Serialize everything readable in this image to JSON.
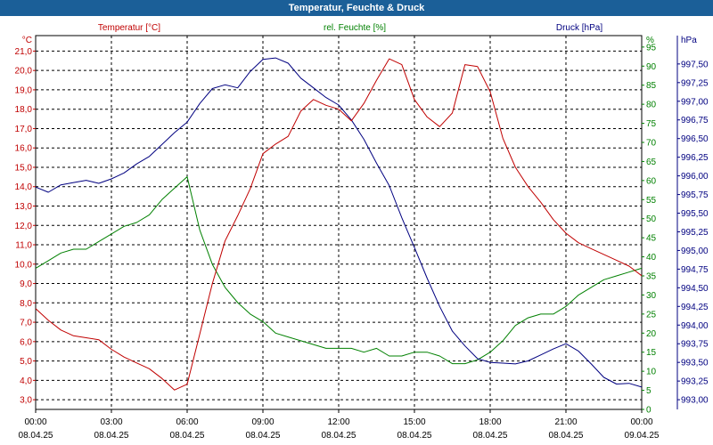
{
  "chart_data": {
    "type": "line",
    "title": "Temperatur, Feuchte & Druck",
    "x_ticks": [
      {
        "time": "00:00",
        "date": "08.04.25"
      },
      {
        "time": "03:00",
        "date": "08.04.25"
      },
      {
        "time": "06:00",
        "date": "08.04.25"
      },
      {
        "time": "09:00",
        "date": "08.04.25"
      },
      {
        "time": "12:00",
        "date": "08.04.25"
      },
      {
        "time": "15:00",
        "date": "08.04.25"
      },
      {
        "time": "18:00",
        "date": "08.04.25"
      },
      {
        "time": "21:00",
        "date": "08.04.25"
      },
      {
        "time": "00:00",
        "date": "09.04.25"
      }
    ],
    "axes": {
      "temperature": {
        "label": "Temperatur [°C]",
        "unit": "°C",
        "color": "#c00000",
        "range": [
          2.5,
          21.8
        ],
        "ticks": [
          "3,0",
          "4,0",
          "5,0",
          "6,0",
          "7,0",
          "8,0",
          "9,0",
          "10,0",
          "11,0",
          "12,0",
          "13,0",
          "14,0",
          "15,0",
          "16,0",
          "17,0",
          "18,0",
          "19,0",
          "20,0",
          "21,0"
        ]
      },
      "humidity": {
        "label": "rel. Feuchte [%]",
        "unit": "%",
        "color": "#008000",
        "range": [
          0,
          98
        ],
        "ticks": [
          "0",
          "5",
          "10",
          "15",
          "20",
          "25",
          "30",
          "35",
          "40",
          "45",
          "50",
          "55",
          "60",
          "65",
          "70",
          "75",
          "80",
          "85",
          "90",
          "95"
        ]
      },
      "pressure": {
        "label": "Druck [hPa]",
        "unit": "hPa",
        "color": "#000080",
        "range": [
          992.87,
          997.88
        ],
        "ticks": [
          "993,00",
          "993,25",
          "993,50",
          "993,75",
          "994,00",
          "994,25",
          "994,50",
          "994,75",
          "995,00",
          "995,25",
          "995,50",
          "995,75",
          "996,00",
          "996,25",
          "996,50",
          "996,75",
          "997,00",
          "997,25",
          "997,50"
        ]
      }
    },
    "x": [
      0,
      0.5,
      1,
      1.5,
      2,
      2.5,
      3,
      3.5,
      4,
      4.5,
      5,
      5.5,
      6,
      6.5,
      7,
      7.5,
      8,
      8.5,
      9,
      9.5,
      10,
      10.5,
      11,
      11.5,
      12,
      12.5,
      13,
      13.5,
      14,
      14.5,
      15,
      15.5,
      16,
      16.5,
      17,
      17.5,
      18,
      18.5,
      19,
      19.5,
      20,
      20.5,
      21,
      21.5,
      22,
      22.5,
      23,
      23.5,
      24
    ],
    "series": [
      {
        "name": "Temperatur [°C]",
        "axis": "temperature",
        "color": "#c00000",
        "values": [
          7.7,
          7.1,
          6.6,
          6.3,
          6.2,
          6.1,
          5.6,
          5.2,
          4.9,
          4.6,
          4.1,
          3.5,
          3.8,
          6.4,
          9.0,
          11.2,
          12.5,
          13.9,
          15.7,
          16.2,
          16.6,
          17.9,
          18.5,
          18.2,
          18.0,
          17.4,
          18.3,
          19.5,
          20.6,
          20.3,
          18.5,
          17.6,
          17.1,
          17.8,
          20.3,
          20.2,
          18.9,
          16.5,
          15.0,
          14.0,
          13.2,
          12.3,
          11.6,
          11.1,
          10.8,
          10.5,
          10.2,
          9.9,
          9.4
        ]
      },
      {
        "name": "rel. Feuchte [%]",
        "axis": "humidity",
        "color": "#008000",
        "values": [
          37,
          39,
          41,
          42,
          42,
          44,
          46,
          48,
          49,
          51,
          55,
          58,
          61,
          47,
          38,
          32,
          28,
          25,
          23,
          20,
          19,
          18,
          17,
          16,
          16,
          16,
          15,
          16,
          14,
          14,
          15,
          15,
          14,
          12,
          12,
          13,
          15,
          18,
          22,
          24,
          25,
          25,
          27,
          30,
          32,
          34,
          35,
          36,
          37
        ]
      },
      {
        "name": "Druck [hPa]",
        "axis": "pressure",
        "color": "#000080",
        "values": [
          995.85,
          995.78,
          995.88,
          995.91,
          995.94,
          995.9,
          995.96,
          996.04,
          996.16,
          996.26,
          996.42,
          996.58,
          996.72,
          996.97,
          997.17,
          997.22,
          997.18,
          997.4,
          997.56,
          997.58,
          997.51,
          997.31,
          997.18,
          997.05,
          996.95,
          996.75,
          996.49,
          996.17,
          995.87,
          995.44,
          995.04,
          994.63,
          994.25,
          993.92,
          993.72,
          993.55,
          993.5,
          993.49,
          993.48,
          993.52,
          993.6,
          993.68,
          993.75,
          993.65,
          993.48,
          993.3,
          993.21,
          993.22,
          993.17
        ]
      }
    ],
    "grid": true,
    "legend": "top"
  }
}
